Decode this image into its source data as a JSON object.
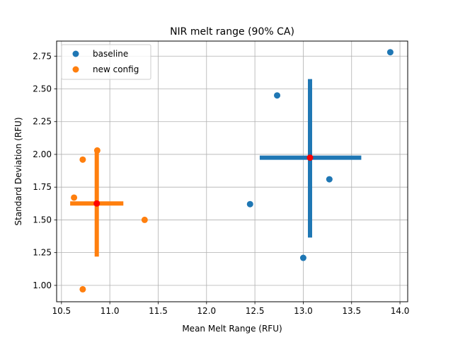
{
  "chart_data": {
    "type": "scatter",
    "title": "NIR melt range (90% CA)",
    "xlabel": "Mean Melt Range (RFU)",
    "ylabel": "Standard Deviation (RFU)",
    "xlim": [
      10.45,
      14.08
    ],
    "ylim": [
      0.875,
      2.865
    ],
    "xticks": [
      10.5,
      11.0,
      11.5,
      12.0,
      12.5,
      13.0,
      13.5,
      14.0
    ],
    "xtick_labels": [
      "10.5",
      "11.0",
      "11.5",
      "12.0",
      "12.5",
      "13.0",
      "13.5",
      "14.0"
    ],
    "yticks": [
      1.0,
      1.25,
      1.5,
      1.75,
      2.0,
      2.25,
      2.5,
      2.75
    ],
    "ytick_labels": [
      "1.00",
      "1.25",
      "1.50",
      "1.75",
      "2.00",
      "2.25",
      "2.50",
      "2.75"
    ],
    "grid": true,
    "legend_position": "top-left",
    "series": [
      {
        "name": "baseline",
        "color": "#1f77b4",
        "points": [
          {
            "x": 13.9,
            "y": 2.78
          },
          {
            "x": 12.73,
            "y": 2.45
          },
          {
            "x": 13.27,
            "y": 1.81
          },
          {
            "x": 12.45,
            "y": 1.62
          },
          {
            "x": 13.0,
            "y": 1.21
          }
        ],
        "center": {
          "x": 13.07,
          "y": 1.975
        },
        "ci_x": [
          12.55,
          13.6
        ],
        "ci_y": [
          1.365,
          2.575
        ]
      },
      {
        "name": "new config",
        "color": "#ff7f0e",
        "points": [
          {
            "x": 10.87,
            "y": 2.03
          },
          {
            "x": 10.72,
            "y": 1.96
          },
          {
            "x": 10.63,
            "y": 1.67
          },
          {
            "x": 11.36,
            "y": 1.5
          },
          {
            "x": 10.72,
            "y": 0.97
          }
        ],
        "center": {
          "x": 10.865,
          "y": 1.625
        },
        "ci_x": [
          10.59,
          11.14
        ],
        "ci_y": [
          1.22,
          2.025
        ]
      }
    ],
    "center_color": "#ff0000"
  }
}
